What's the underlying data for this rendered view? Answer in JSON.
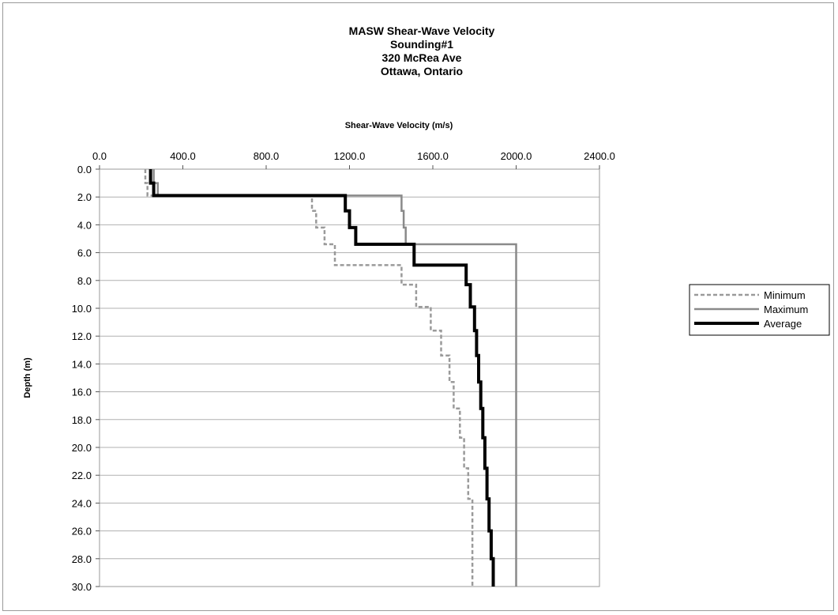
{
  "chart_data": {
    "type": "line",
    "title_lines": [
      "MASW Shear-Wave Velocity",
      "Sounding#1",
      "320 McRea Ave",
      "Ottawa, Ontario"
    ],
    "xlabel": "Shear-Wave Velocity (m/s)",
    "ylabel": "Depth (m)",
    "xlim": [
      0,
      2400
    ],
    "ylim": [
      0,
      30
    ],
    "y_inverted": true,
    "x_axis_position": "top",
    "x_ticks": [
      "0.0",
      "400.0",
      "800.0",
      "1200.0",
      "1600.0",
      "2000.0",
      "2400.0"
    ],
    "x_tick_values": [
      0,
      400,
      800,
      1200,
      1600,
      2000,
      2400
    ],
    "y_ticks": [
      "0.0",
      "2.0",
      "4.0",
      "6.0",
      "8.0",
      "10.0",
      "12.0",
      "14.0",
      "16.0",
      "18.0",
      "20.0",
      "22.0",
      "24.0",
      "26.0",
      "28.0",
      "30.0"
    ],
    "y_tick_values": [
      0,
      2,
      4,
      6,
      8,
      10,
      12,
      14,
      16,
      18,
      20,
      22,
      24,
      26,
      28,
      30
    ],
    "grid": "horizontal",
    "legend_position": "right",
    "series": [
      {
        "name": "Minimum",
        "style": "dashed",
        "color": "#9a9a9a",
        "points": [
          [
            220,
            0
          ],
          [
            220,
            1.0
          ],
          [
            230,
            1.0
          ],
          [
            230,
            1.9
          ],
          [
            1020,
            1.9
          ],
          [
            1020,
            3.0
          ],
          [
            1040,
            3.0
          ],
          [
            1040,
            4.2
          ],
          [
            1080,
            4.2
          ],
          [
            1080,
            5.4
          ],
          [
            1130,
            5.4
          ],
          [
            1130,
            6.9
          ],
          [
            1450,
            6.9
          ],
          [
            1450,
            8.3
          ],
          [
            1520,
            8.3
          ],
          [
            1520,
            9.9
          ],
          [
            1590,
            9.9
          ],
          [
            1590,
            11.6
          ],
          [
            1640,
            11.6
          ],
          [
            1640,
            13.4
          ],
          [
            1680,
            13.4
          ],
          [
            1680,
            15.3
          ],
          [
            1700,
            15.3
          ],
          [
            1700,
            17.2
          ],
          [
            1730,
            17.2
          ],
          [
            1730,
            19.3
          ],
          [
            1750,
            19.3
          ],
          [
            1750,
            21.5
          ],
          [
            1770,
            21.5
          ],
          [
            1770,
            23.7
          ],
          [
            1790,
            23.7
          ],
          [
            1790,
            30
          ]
        ]
      },
      {
        "name": "Maximum",
        "style": "solid",
        "color": "#8a8a8a",
        "points": [
          [
            260,
            0
          ],
          [
            260,
            1.0
          ],
          [
            280,
            1.0
          ],
          [
            280,
            1.9
          ],
          [
            1450,
            1.9
          ],
          [
            1450,
            3.0
          ],
          [
            1460,
            3.0
          ],
          [
            1460,
            4.2
          ],
          [
            1470,
            4.2
          ],
          [
            1470,
            5.4
          ],
          [
            2000,
            5.4
          ],
          [
            2000,
            30
          ]
        ]
      },
      {
        "name": "Average",
        "style": "solid",
        "color": "#000000",
        "points": [
          [
            245,
            0
          ],
          [
            245,
            1.0
          ],
          [
            260,
            1.0
          ],
          [
            260,
            1.9
          ],
          [
            1180,
            1.9
          ],
          [
            1180,
            3.0
          ],
          [
            1200,
            3.0
          ],
          [
            1200,
            4.2
          ],
          [
            1230,
            4.2
          ],
          [
            1230,
            5.4
          ],
          [
            1510,
            5.4
          ],
          [
            1510,
            6.9
          ],
          [
            1760,
            6.9
          ],
          [
            1760,
            8.3
          ],
          [
            1780,
            8.3
          ],
          [
            1780,
            9.9
          ],
          [
            1800,
            9.9
          ],
          [
            1800,
            11.6
          ],
          [
            1810,
            11.6
          ],
          [
            1810,
            13.4
          ],
          [
            1820,
            13.4
          ],
          [
            1820,
            15.3
          ],
          [
            1830,
            15.3
          ],
          [
            1830,
            17.2
          ],
          [
            1840,
            17.2
          ],
          [
            1840,
            19.3
          ],
          [
            1850,
            19.3
          ],
          [
            1850,
            21.5
          ],
          [
            1860,
            21.5
          ],
          [
            1860,
            23.7
          ],
          [
            1870,
            23.7
          ],
          [
            1870,
            26.0
          ],
          [
            1880,
            26.0
          ],
          [
            1880,
            28.0
          ],
          [
            1890,
            28.0
          ],
          [
            1890,
            30
          ]
        ]
      }
    ]
  }
}
